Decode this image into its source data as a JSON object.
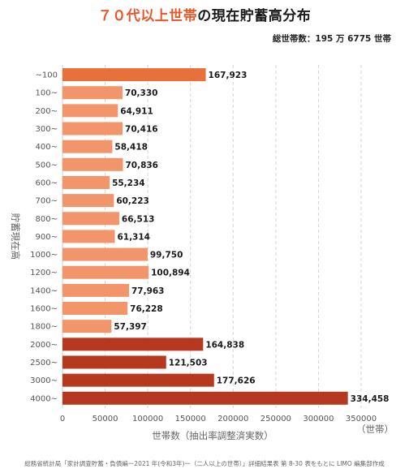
{
  "title_accent": "７０代以上世帯",
  "title_rest": "の現在貯蓄高分布",
  "total_label": "総世帯数：195 万 6775 世帯",
  "footer": "総務省統計局「家計調査貯蓄・負債編ー2021 年(令和3年)ー（二人以上の世帯）」詳細結果表 第 8-30 表をもとに LIMO 編集部作成",
  "chart_data": {
    "type": "bar",
    "orientation": "horizontal",
    "categories": [
      "~100",
      "100~",
      "200~",
      "300~",
      "400~",
      "500~",
      "600~",
      "700~",
      "800~",
      "900~",
      "1000~",
      "1200~",
      "1400~",
      "1600~",
      "1800~",
      "2000~",
      "2500~",
      "3000~",
      "4000~"
    ],
    "values": [
      167923,
      70330,
      64911,
      70416,
      58418,
      70836,
      55234,
      60223,
      66513,
      61314,
      99750,
      100894,
      77963,
      76228,
      57397,
      164838,
      121503,
      177626,
      334458
    ],
    "value_labels": [
      "167,923",
      "70,330",
      "64,911",
      "70,416",
      "58,418",
      "70,836",
      "55,234",
      "60,223",
      "66,513",
      "61,314",
      "99,750",
      "100,894",
      "77,963",
      "76,228",
      "57,397",
      "164,838",
      "121,503",
      "177,626",
      "334,458"
    ],
    "bar_colors": [
      "#e8703a",
      "#f2956a",
      "#f2956a",
      "#f2956a",
      "#f2956a",
      "#f2956a",
      "#f2956a",
      "#f2956a",
      "#f2956a",
      "#f2956a",
      "#f2956a",
      "#f2956a",
      "#f2956a",
      "#f2956a",
      "#f2956a",
      "#b5381f",
      "#b5381f",
      "#b5381f",
      "#b5381f"
    ],
    "xlim": [
      0,
      350000
    ],
    "xticks": [
      0,
      50000,
      100000,
      150000,
      200000,
      250000,
      300000,
      350000
    ],
    "xtick_labels": [
      "0",
      "50000",
      "100000",
      "150000",
      "200000",
      "250000",
      "300000",
      "350000"
    ],
    "xlabel": "世帯数（抽出率調整済実数）",
    "x_unit": "（世帯）",
    "ylabel": "貯蓄現在高",
    "grid": "vertical dashed"
  }
}
